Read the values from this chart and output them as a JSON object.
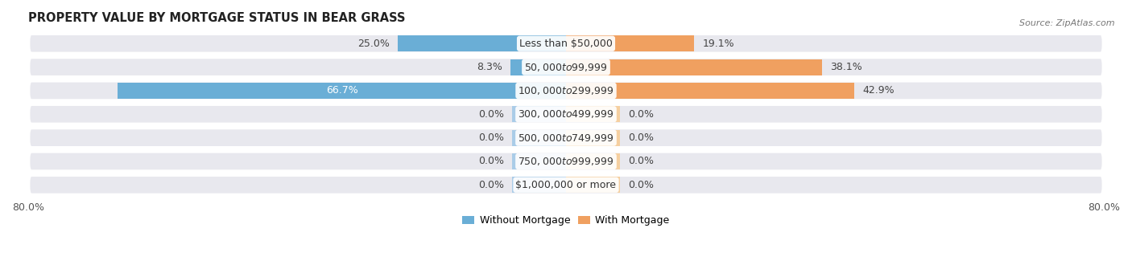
{
  "title": "PROPERTY VALUE BY MORTGAGE STATUS IN BEAR GRASS",
  "source": "Source: ZipAtlas.com",
  "categories": [
    "Less than $50,000",
    "$50,000 to $99,999",
    "$100,000 to $299,999",
    "$300,000 to $499,999",
    "$500,000 to $749,999",
    "$750,000 to $999,999",
    "$1,000,000 or more"
  ],
  "without_mortgage": [
    25.0,
    8.3,
    66.7,
    0.0,
    0.0,
    0.0,
    0.0
  ],
  "with_mortgage": [
    19.1,
    38.1,
    42.9,
    0.0,
    0.0,
    0.0,
    0.0
  ],
  "without_mortgage_color": "#6aaed6",
  "with_mortgage_color": "#f0a060",
  "without_mortgage_color_light": "#aacce8",
  "with_mortgage_color_light": "#f5cfa0",
  "row_bg_color": "#e8e8ee",
  "xlim": 80.0,
  "min_bar_pct": 8.0,
  "legend_labels": [
    "Without Mortgage",
    "With Mortgage"
  ],
  "title_fontsize": 10.5,
  "label_fontsize": 9,
  "tick_fontsize": 9,
  "source_fontsize": 8
}
